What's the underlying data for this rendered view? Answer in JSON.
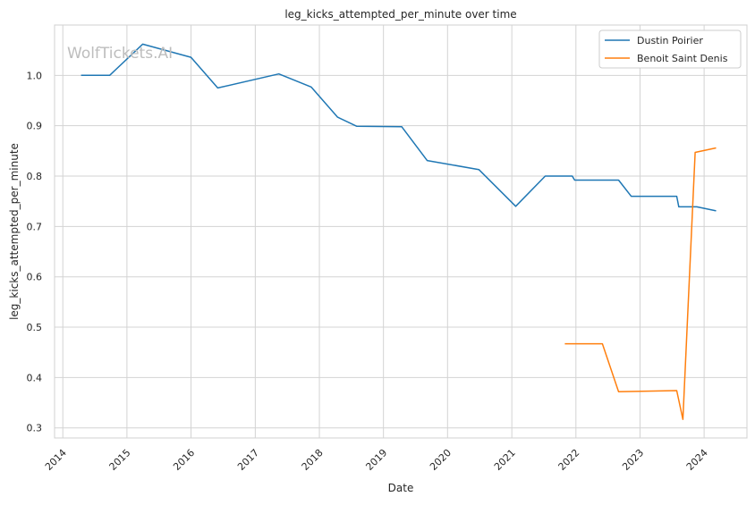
{
  "chart_data": {
    "type": "line",
    "title": "leg_kicks_attempted_per_minute over time",
    "xlabel": "Date",
    "ylabel": "leg_kicks_attempted_per_minute",
    "watermark": "WolfTickets.AI",
    "x_range": [
      "2013-11-15",
      "2024-09-01"
    ],
    "ylim": [
      0.28,
      1.1
    ],
    "x_ticks": [
      "2014",
      "2015",
      "2016",
      "2017",
      "2018",
      "2019",
      "2020",
      "2021",
      "2022",
      "2023",
      "2024"
    ],
    "y_ticks": [
      "0.3",
      "0.4",
      "0.5",
      "0.6",
      "0.7",
      "0.8",
      "0.9",
      "1.0"
    ],
    "grid": true,
    "legend_position": "top-right",
    "series": [
      {
        "name": "Dustin Poirier",
        "color": "#1f77b4",
        "points": [
          {
            "x": "2014-04-15",
            "y": 1.0
          },
          {
            "x": "2014-09-25",
            "y": 1.0
          },
          {
            "x": "2015-04-01",
            "y": 1.062
          },
          {
            "x": "2016-01-01",
            "y": 1.036
          },
          {
            "x": "2016-06-01",
            "y": 0.975
          },
          {
            "x": "2017-05-15",
            "y": 1.003
          },
          {
            "x": "2017-11-15",
            "y": 0.977
          },
          {
            "x": "2018-04-15",
            "y": 0.917
          },
          {
            "x": "2018-08-01",
            "y": 0.899
          },
          {
            "x": "2019-04-15",
            "y": 0.898
          },
          {
            "x": "2019-09-07",
            "y": 0.831
          },
          {
            "x": "2020-06-27",
            "y": 0.813
          },
          {
            "x": "2021-01-23",
            "y": 0.74
          },
          {
            "x": "2021-07-10",
            "y": 0.8
          },
          {
            "x": "2021-12-11",
            "y": 0.8
          },
          {
            "x": "2021-12-25",
            "y": 0.792
          },
          {
            "x": "2022-09-01",
            "y": 0.792
          },
          {
            "x": "2022-11-12",
            "y": 0.76
          },
          {
            "x": "2023-07-29",
            "y": 0.76
          },
          {
            "x": "2023-08-10",
            "y": 0.739
          },
          {
            "x": "2023-11-20",
            "y": 0.739
          },
          {
            "x": "2024-03-09",
            "y": 0.731
          }
        ]
      },
      {
        "name": "Benoit Saint Denis",
        "color": "#ff7f0e",
        "points": [
          {
            "x": "2021-10-30",
            "y": 0.467
          },
          {
            "x": "2022-06-01",
            "y": 0.467
          },
          {
            "x": "2022-09-01",
            "y": 0.372
          },
          {
            "x": "2023-07-29",
            "y": 0.374
          },
          {
            "x": "2023-09-02",
            "y": 0.317
          },
          {
            "x": "2023-11-11",
            "y": 0.847
          },
          {
            "x": "2024-03-09",
            "y": 0.856
          }
        ]
      }
    ]
  }
}
